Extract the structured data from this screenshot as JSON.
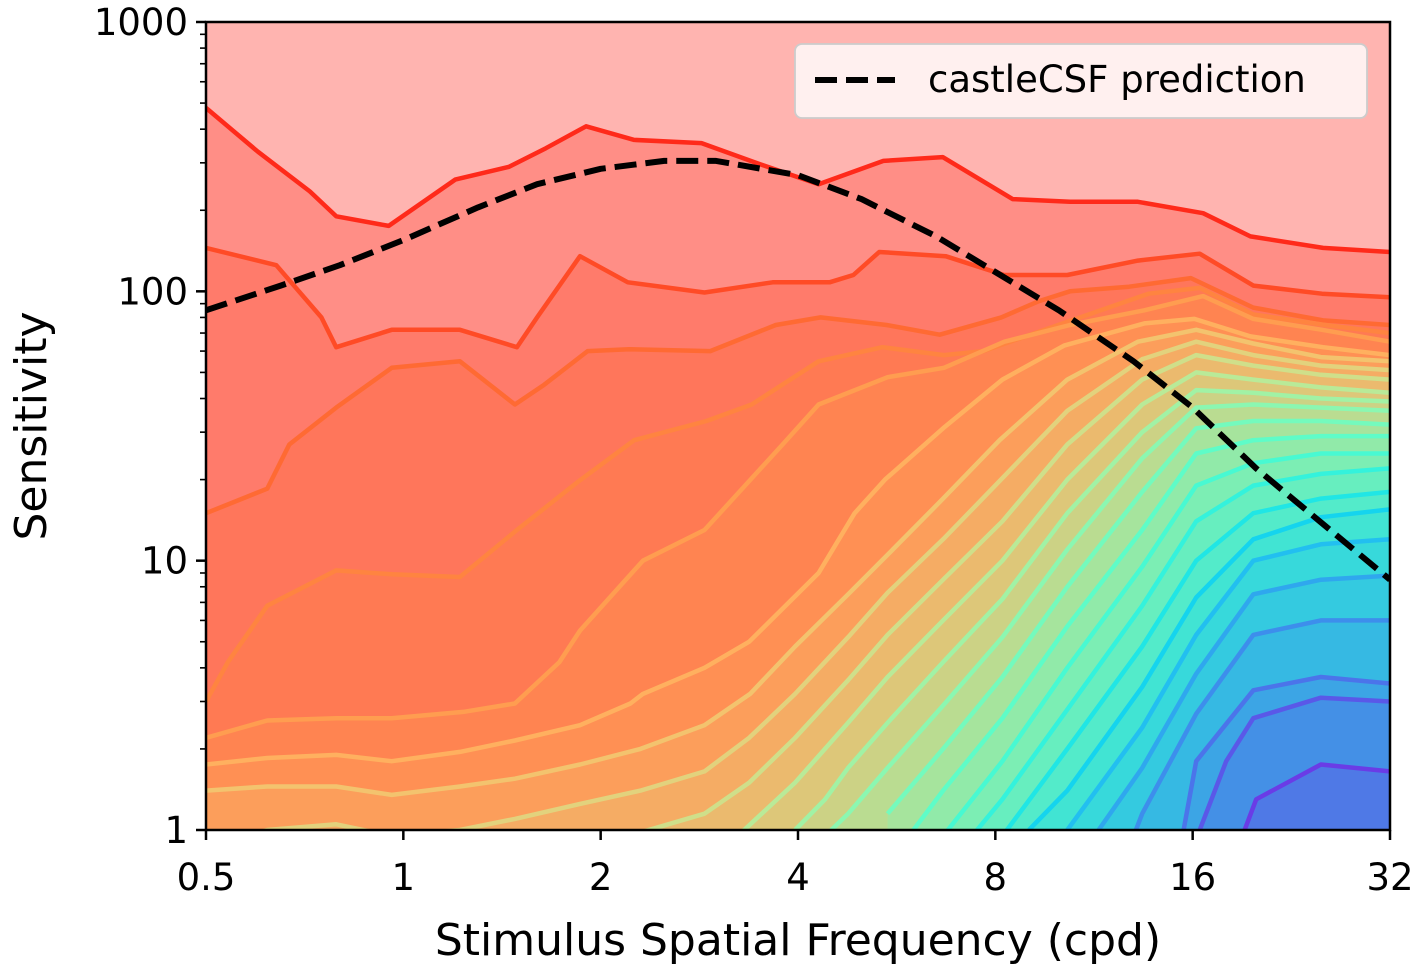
{
  "chart_data": {
    "type": "line",
    "title": "",
    "xlabel": "Stimulus Spatial Frequency (cpd)",
    "ylabel": "Sensitivity",
    "x_scale": "log2",
    "y_scale": "log10",
    "xlim": [
      0.5,
      32
    ],
    "ylim": [
      1,
      1000
    ],
    "x_ticks": [
      0.5,
      1,
      2,
      4,
      8,
      16,
      32
    ],
    "x_tick_labels": [
      "0.5",
      "1",
      "2",
      "4",
      "8",
      "16",
      "32"
    ],
    "y_ticks": [
      1,
      10,
      100,
      1000
    ],
    "y_tick_labels": [
      "1",
      "10",
      "100",
      "1000"
    ],
    "grid": false,
    "legend": {
      "placement": "top-right",
      "entries": [
        "castleCSF prediction"
      ]
    },
    "prediction": {
      "name": "castleCSF prediction",
      "style": "dashed",
      "color": "#000000",
      "x": [
        0.5,
        0.65,
        0.8,
        1.0,
        1.3,
        1.6,
        2.0,
        2.5,
        3.0,
        4.0,
        5.0,
        6.5,
        8.0,
        10.0,
        13.0,
        16.0,
        20.0,
        25.0,
        32.0
      ],
      "y": [
        85,
        105,
        125,
        155,
        205,
        250,
        285,
        305,
        305,
        270,
        220,
        160,
        118,
        85,
        55,
        37,
        22,
        14,
        8.5
      ]
    },
    "contours": [
      {
        "color": "#ff2a1a",
        "x": [
          0.5,
          0.6,
          0.72,
          0.79,
          0.95,
          1.2,
          1.45,
          1.65,
          1.9,
          2.25,
          2.85,
          3.45,
          4.3,
          5.4,
          6.65,
          8.5,
          10.4,
          13.2,
          16.6,
          19.6,
          25.3,
          32
        ],
        "y": [
          480,
          330,
          235,
          190,
          175,
          260,
          290,
          340,
          410,
          365,
          355,
          300,
          250,
          305,
          315,
          220,
          215,
          215,
          195,
          160,
          145,
          140
        ]
      },
      {
        "color": "#ff4b26",
        "x": [
          0.5,
          0.64,
          0.75,
          0.79,
          0.96,
          1.22,
          1.49,
          1.6,
          1.86,
          2.2,
          2.88,
          3.66,
          4.47,
          4.86,
          5.32,
          6.72,
          8.25,
          10.3,
          13.2,
          16.4,
          19.8,
          25.2,
          32
        ],
        "y": [
          145,
          125,
          80,
          62,
          72,
          72,
          62,
          80,
          135,
          108,
          99,
          108,
          108,
          115,
          140,
          135,
          115,
          115,
          130,
          138,
          105,
          98,
          95
        ]
      },
      {
        "color": "#ff6a33",
        "x": [
          0.5,
          0.62,
          0.67,
          0.79,
          0.96,
          1.22,
          1.48,
          1.64,
          1.91,
          2.21,
          2.94,
          3.7,
          4.33,
          5.46,
          6.58,
          8.17,
          9.33,
          10.4,
          12.8,
          15.9,
          19.8,
          25.3,
          32
        ],
        "y": [
          15,
          18.5,
          27,
          37,
          52,
          55,
          38,
          45,
          60,
          61,
          60,
          75,
          80,
          75,
          69,
          80,
          92,
          100,
          104,
          112,
          87,
          78,
          75
        ]
      },
      {
        "color": "#ff8440",
        "x": [
          0.5,
          0.54,
          0.62,
          0.79,
          0.96,
          1.22,
          1.49,
          1.84,
          2.25,
          2.9,
          3.4,
          4.3,
          5.38,
          6.68,
          7.67,
          9.67,
          13.7,
          16.4,
          19.8,
          25.5,
          32
        ],
        "y": [
          3,
          4.2,
          6.8,
          9.2,
          8.9,
          8.7,
          13,
          19.5,
          28,
          33,
          38,
          55,
          62,
          58,
          60,
          73,
          98,
          103,
          82,
          75,
          70
        ]
      },
      {
        "color": "#ff9d50",
        "x": [
          0.5,
          0.62,
          0.79,
          0.96,
          1.24,
          1.48,
          1.73,
          1.86,
          2.32,
          2.88,
          3.79,
          4.3,
          5.48,
          6.68,
          8.26,
          10.4,
          13.5,
          16.6,
          19.8,
          25.2,
          32
        ],
        "y": [
          2.2,
          2.55,
          2.6,
          2.6,
          2.75,
          2.95,
          4.2,
          5.5,
          10,
          13,
          27,
          38,
          48,
          52,
          65,
          75,
          85,
          96,
          79,
          72,
          65
        ]
      },
      {
        "color": "#ffb05f",
        "x": [
          0.5,
          0.62,
          0.79,
          0.96,
          1.22,
          1.48,
          1.86,
          2.22,
          2.32,
          2.88,
          3.37,
          4.3,
          4.88,
          5.43,
          6.66,
          8.2,
          10.2,
          13.5,
          16.1,
          19.6,
          25.3,
          32
        ],
        "y": [
          1.75,
          1.85,
          1.9,
          1.8,
          1.95,
          2.15,
          2.45,
          2.95,
          3.2,
          4,
          5,
          9,
          15,
          20,
          31,
          47,
          63,
          76,
          79,
          68,
          62,
          58
        ]
      },
      {
        "color": "#f3c36e",
        "x": [
          0.5,
          0.62,
          0.79,
          0.96,
          1.22,
          1.48,
          1.86,
          2.3,
          2.88,
          3.38,
          3.96,
          4.77,
          5.58,
          6.66,
          8.12,
          10.3,
          13.2,
          16.2,
          19.8,
          25.1,
          32
        ],
        "y": [
          1.4,
          1.45,
          1.45,
          1.35,
          1.45,
          1.55,
          1.75,
          2.0,
          2.45,
          3.2,
          4.8,
          7.5,
          11,
          17,
          28,
          47,
          65,
          72,
          64,
          57,
          55
        ]
      },
      {
        "color": "#e2d27d",
        "x": [
          0.5,
          0.62,
          0.79,
          0.96,
          1.22,
          1.48,
          1.86,
          2.3,
          2.88,
          3.37,
          3.96,
          4.77,
          5.48,
          6.66,
          8.16,
          10.3,
          13.4,
          16.2,
          19.8,
          25.1,
          32
        ],
        "y": [
          0.85,
          1.0,
          1.05,
          0.95,
          1.0,
          1.1,
          1.25,
          1.4,
          1.65,
          2.2,
          3.2,
          5.2,
          7.6,
          12,
          20,
          36,
          56,
          65,
          58,
          53,
          51
        ]
      },
      {
        "color": "#cfdf8a",
        "x": [
          1.48,
          1.86,
          2.3,
          2.88,
          3.37,
          3.96,
          4.77,
          5.48,
          6.66,
          8.2,
          10.3,
          13.4,
          16.2,
          19.8,
          25.1,
          32
        ],
        "y": [
          0.75,
          0.87,
          0.98,
          1.15,
          1.5,
          2.2,
          3.6,
          5.3,
          8.5,
          14,
          27,
          47,
          58,
          53,
          49,
          47
        ]
      },
      {
        "color": "#b9ea98",
        "x": [
          3.0,
          3.96,
          4.77,
          5.48,
          6.66,
          8.2,
          10.3,
          13.4,
          16.2,
          19.8,
          25.1,
          32
        ],
        "y": [
          0.8,
          1.5,
          2.5,
          3.7,
          6.0,
          10,
          20,
          38,
          50,
          47,
          44,
          42
        ]
      },
      {
        "color": "#a1f2a5",
        "x": [
          3.96,
          4.4,
          4.77,
          5.48,
          6.66,
          8.2,
          10.3,
          13.4,
          16.2,
          19.8,
          25.1,
          32
        ],
        "y": [
          1.0,
          1.3,
          1.7,
          2.5,
          4.2,
          7.2,
          15,
          30,
          43,
          42,
          40,
          39
        ]
      },
      {
        "color": "#8bf7b1",
        "x": [
          4.4,
          4.77,
          5.48,
          6.66,
          8.2,
          10.3,
          13.4,
          16.2,
          19.8,
          25.1,
          32
        ],
        "y": [
          0.95,
          1.15,
          1.7,
          2.9,
          5.2,
          11,
          24,
          37,
          38,
          37,
          36
        ]
      },
      {
        "color": "#74fabd",
        "x": [
          5.48,
          6.66,
          8.2,
          10.3,
          13.4,
          16.2,
          19.8,
          25.1,
          32
        ],
        "y": [
          1.15,
          2.0,
          3.7,
          8.0,
          18,
          31,
          33,
          33,
          32
        ]
      },
      {
        "color": "#5efcc8",
        "x": [
          6.0,
          6.66,
          8.2,
          10.3,
          13.4,
          16.2,
          19.8,
          25.1,
          32
        ],
        "y": [
          1.0,
          1.4,
          2.6,
          5.7,
          13,
          25,
          28,
          29,
          29
        ]
      },
      {
        "color": "#48f9d2",
        "x": [
          6.66,
          8.2,
          10.3,
          13.4,
          16.2,
          19.8,
          25.1,
          32
        ],
        "y": [
          0.95,
          1.8,
          4.0,
          9.5,
          19,
          23,
          25,
          25
        ]
      },
      {
        "color": "#34f2dc",
        "x": [
          7.5,
          8.2,
          10.3,
          13.4,
          16.2,
          19.8,
          25.1,
          32
        ],
        "y": [
          1.0,
          1.3,
          2.8,
          6.8,
          14,
          19,
          21,
          22
        ]
      },
      {
        "color": "#20e6e5",
        "x": [
          8.2,
          10.3,
          13.4,
          16.2,
          19.8,
          25.1,
          32
        ],
        "y": [
          0.95,
          2.0,
          4.8,
          10,
          15,
          17,
          18
        ]
      },
      {
        "color": "#15d4ee",
        "x": [
          9.0,
          10.3,
          13.4,
          16.2,
          19.8,
          25.1,
          32
        ],
        "y": [
          1.0,
          1.4,
          3.4,
          7.3,
          12,
          14.5,
          15.5
        ]
      },
      {
        "color": "#22bff0",
        "x": [
          10.3,
          13.4,
          16.2,
          19.8,
          25.1,
          32
        ],
        "y": [
          1.0,
          2.4,
          5.3,
          10,
          11.5,
          12
        ]
      },
      {
        "color": "#2fa7ee",
        "x": [
          11.5,
          13.4,
          16.2,
          19.8,
          25.1,
          32
        ],
        "y": [
          1.0,
          1.7,
          3.8,
          7.5,
          8.5,
          8.8
        ]
      },
      {
        "color": "#3d8eec",
        "x": [
          13.0,
          13.4,
          16.2,
          19.8,
          25.1,
          32
        ],
        "y": [
          0.95,
          1.15,
          2.7,
          5.3,
          6.0,
          6.0
        ]
      },
      {
        "color": "#4b74ea",
        "x": [
          15.5,
          16.2,
          19.8,
          25.1,
          32
        ],
        "y": [
          1.0,
          1.8,
          3.3,
          3.7,
          3.5
        ]
      },
      {
        "color": "#5a58e8",
        "x": [
          16.0,
          16.4,
          18.0,
          19.8,
          25.1,
          32
        ],
        "y": [
          0.9,
          1.0,
          1.8,
          2.6,
          3.1,
          3.0
        ]
      },
      {
        "color": "#6a3ce6",
        "x": [
          19.2,
          20.0,
          25.1,
          32
        ],
        "y": [
          1.0,
          1.3,
          1.75,
          1.65
        ]
      }
    ]
  }
}
